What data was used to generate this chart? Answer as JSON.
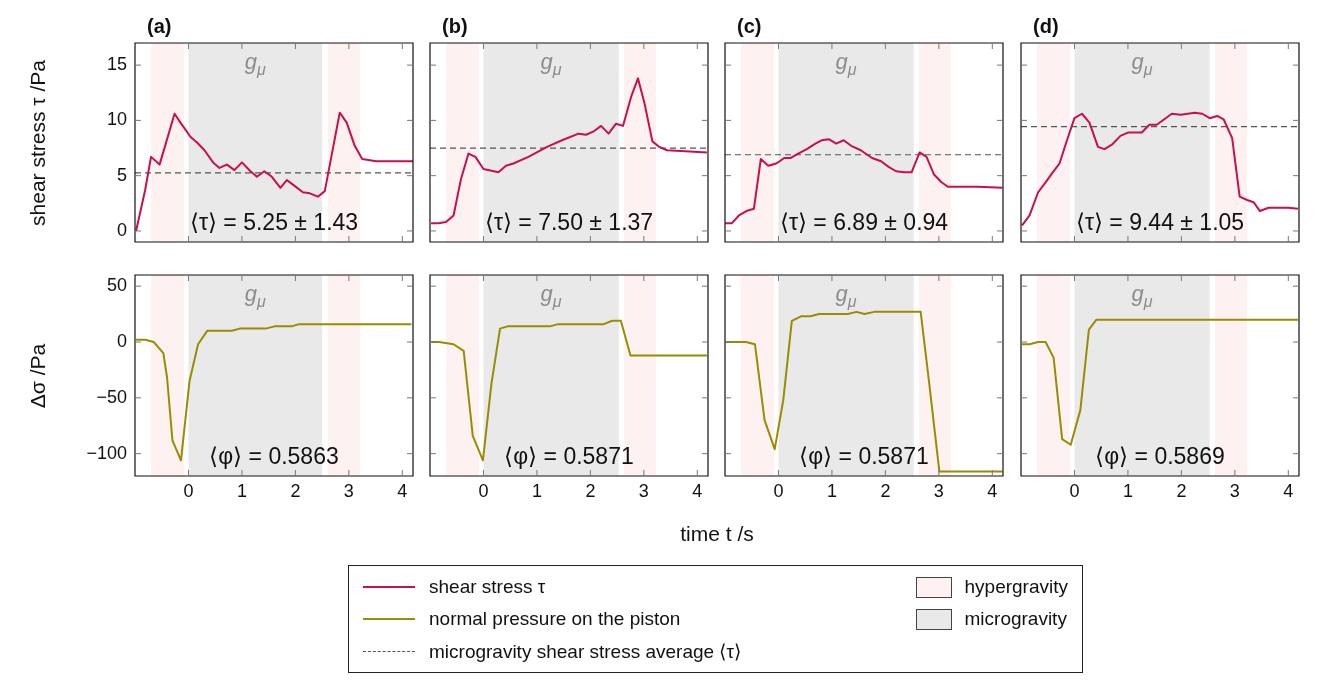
{
  "chart_data": [
    {
      "type": "line",
      "title": "(a)",
      "ylabel": "shear stress τ /Pa",
      "xlim": [
        -1,
        4.2
      ],
      "ylim": [
        -1,
        17
      ],
      "xticks": [
        0,
        1,
        2,
        3,
        4
      ],
      "yticks": [
        0,
        5,
        10,
        15
      ],
      "tick_labels": "y",
      "legend": "bottom",
      "series": [
        {
          "name": "shear stress τ",
          "color": "#c8104a",
          "x": [
            -0.98,
            -0.81,
            -0.7,
            -0.54,
            -0.26,
            -0.15,
            0.04,
            0.16,
            0.3,
            0.46,
            0.58,
            0.72,
            0.86,
            1.0,
            1.16,
            1.28,
            1.42,
            1.56,
            1.72,
            1.84,
            1.98,
            2.14,
            2.27,
            2.42,
            2.55,
            2.83,
            2.96,
            3.11,
            3.25,
            3.51,
            4.2
          ],
          "values": [
            0,
            3.7,
            6.7,
            6.0,
            10.6,
            9.8,
            8.5,
            8.0,
            7.3,
            6.2,
            5.7,
            6.0,
            5.5,
            6.2,
            5.4,
            4.9,
            5.4,
            4.9,
            3.9,
            4.6,
            4.1,
            3.5,
            3.4,
            3.1,
            3.6,
            10.7,
            9.8,
            7.7,
            6.5,
            6.3,
            6.3
          ]
        }
      ],
      "ref_lines": [
        {
          "axis": "y",
          "value": 5.25,
          "label": "microgravity shear stress average ⟨τ⟩",
          "line_style": "dashed",
          "color": "#555555"
        }
      ],
      "bands": [
        {
          "axis": "x",
          "from": -0.7,
          "to": -0.08,
          "color": "#fdf1f1",
          "label": "hypergravity"
        },
        {
          "axis": "x",
          "from": 0,
          "to": 2.5,
          "color": "#e9e9e9",
          "label": "microgravity"
        },
        {
          "axis": "x",
          "from": 2.61,
          "to": 3.21,
          "color": "#fdf1f1"
        }
      ],
      "annotations": [
        "g$_{μ}$",
        "⟨τ⟩ = 5.25 ± 1.43"
      ]
    },
    {
      "type": "line",
      "title": "(b)",
      "xlim": [
        -1,
        4.2
      ],
      "ylim": [
        -1,
        17
      ],
      "xticks": [
        0,
        1,
        2,
        3,
        4
      ],
      "yticks": [
        0,
        5,
        10,
        15
      ],
      "tick_labels": false,
      "series": [
        {
          "color": "#c8104a",
          "x": [
            -0.98,
            -0.84,
            -0.7,
            -0.56,
            -0.42,
            -0.28,
            -0.15,
            0,
            0.28,
            0.42,
            0.56,
            0.84,
            1.19,
            1.47,
            1.78,
            1.92,
            2.06,
            2.2,
            2.34,
            2.48,
            2.61,
            2.76,
            2.89,
            3.01,
            3.16,
            3.29,
            3.43,
            3.78,
            4.18
          ],
          "values": [
            0.7,
            0.7,
            0.8,
            1.4,
            4.7,
            7.0,
            6.7,
            5.6,
            5.3,
            5.9,
            6.1,
            6.7,
            7.6,
            8.2,
            8.8,
            8.7,
            9.0,
            9.5,
            8.8,
            9.7,
            9.5,
            12.1,
            13.8,
            11.6,
            8.1,
            7.6,
            7.3,
            7.2,
            7.1
          ]
        }
      ],
      "ref_lines": [
        {
          "axis": "y",
          "value": 7.5,
          "line_style": "dashed",
          "color": "#555555"
        }
      ],
      "bands": [
        {
          "axis": "x",
          "from": -0.7,
          "to": -0.08,
          "color": "#fdf1f1"
        },
        {
          "axis": "x",
          "from": 0,
          "to": 2.53,
          "color": "#e9e9e9"
        },
        {
          "axis": "x",
          "from": 2.63,
          "to": 3.23,
          "color": "#fdf1f1"
        }
      ],
      "annotations": [
        "g$_{μ}$",
        "⟨τ⟩ = 7.50 ± 1.37"
      ]
    },
    {
      "type": "line",
      "title": "(c)",
      "xlim": [
        -1,
        4.2
      ],
      "ylim": [
        -1,
        17
      ],
      "xticks": [
        0,
        1,
        2,
        3,
        4
      ],
      "yticks": [
        0,
        5,
        10,
        15
      ],
      "tick_labels": false,
      "series": [
        {
          "color": "#c8104a",
          "x": [
            -1.0,
            -0.87,
            -0.74,
            -0.6,
            -0.46,
            -0.33,
            -0.19,
            -0.04,
            0.11,
            0.23,
            0.37,
            0.53,
            0.69,
            0.81,
            0.94,
            1.08,
            1.22,
            1.36,
            1.54,
            1.75,
            1.92,
            2.06,
            2.2,
            2.35,
            2.49,
            2.64,
            2.77,
            2.91,
            3.05,
            3.17,
            3.45,
            3.73,
            4.19
          ],
          "values": [
            0.7,
            0.7,
            1.4,
            1.8,
            2.0,
            6.5,
            5.9,
            6.1,
            6.6,
            6.6,
            7.0,
            7.4,
            7.9,
            8.2,
            8.3,
            7.9,
            8.2,
            7.7,
            7.3,
            6.6,
            6.3,
            5.8,
            5.4,
            5.3,
            5.3,
            7.1,
            6.7,
            5.1,
            4.4,
            4.0,
            4.0,
            4.0,
            3.9
          ]
        }
      ],
      "ref_lines": [
        {
          "axis": "y",
          "value": 6.89,
          "line_style": "dashed",
          "color": "#555555"
        }
      ],
      "bands": [
        {
          "axis": "x",
          "from": -0.7,
          "to": -0.08,
          "color": "#fdf1f1"
        },
        {
          "axis": "x",
          "from": 0,
          "to": 2.53,
          "color": "#e9e9e9"
        },
        {
          "axis": "x",
          "from": 2.63,
          "to": 3.23,
          "color": "#fdf1f1"
        }
      ],
      "annotations": [
        "g$_{μ}$",
        "⟨τ⟩ = 6.89 ± 0.94"
      ]
    },
    {
      "type": "line",
      "title": "(d)",
      "xlim": [
        -1,
        4.2
      ],
      "ylim": [
        -1,
        17
      ],
      "xticks": [
        0,
        1,
        2,
        3,
        4
      ],
      "yticks": [
        0,
        5,
        10,
        15
      ],
      "tick_labels": false,
      "series": [
        {
          "color": "#c8104a",
          "x": [
            -0.98,
            -0.84,
            -0.68,
            -0.54,
            -0.42,
            -0.28,
            -0.14,
            0,
            0.14,
            0.28,
            0.44,
            0.56,
            0.7,
            0.86,
            1.0,
            1.26,
            1.4,
            1.54,
            1.68,
            1.82,
            1.99,
            2.25,
            2.39,
            2.53,
            2.67,
            2.79,
            2.95,
            3.09,
            3.23,
            3.35,
            3.47,
            3.63,
            3.86,
            4.0,
            4.18
          ],
          "values": [
            0.5,
            1.4,
            3.5,
            4.4,
            5.2,
            6.1,
            8.2,
            10.2,
            10.6,
            9.8,
            7.6,
            7.4,
            7.8,
            8.6,
            8.9,
            8.9,
            9.6,
            9.6,
            10.1,
            10.6,
            10.5,
            10.7,
            10.6,
            10.2,
            10.4,
            10.1,
            8.4,
            3.1,
            2.8,
            2.6,
            1.8,
            2.1,
            2.1,
            2.1,
            2.0
          ]
        }
      ],
      "ref_lines": [
        {
          "axis": "y",
          "value": 9.44,
          "line_style": "dashed",
          "color": "#555555"
        }
      ],
      "bands": [
        {
          "axis": "x",
          "from": -0.7,
          "to": -0.08,
          "color": "#fdf1f1"
        },
        {
          "axis": "x",
          "from": 0,
          "to": 2.53,
          "color": "#e9e9e9"
        },
        {
          "axis": "x",
          "from": 2.63,
          "to": 3.23,
          "color": "#fdf1f1"
        }
      ],
      "annotations": [
        "g$_{μ}$",
        "⟨τ⟩ = 9.44 ± 1.05"
      ]
    },
    {
      "type": "line",
      "ylabel": "Δσ /Pa",
      "xlim": [
        -1,
        4.2
      ],
      "ylim": [
        -120,
        60
      ],
      "xticks": [
        0,
        1,
        2,
        3,
        4
      ],
      "yticks": [
        -100,
        -50,
        0,
        50
      ],
      "legend": "bottom",
      "series": [
        {
          "name": "normal pressure on the piston",
          "color": "#9a8c00",
          "x": [
            -0.98,
            -0.81,
            -0.65,
            -0.47,
            -0.4,
            -0.3,
            -0.14,
            0.02,
            0.18,
            0.35,
            0.81,
            0.96,
            1.44,
            1.61,
            1.93,
            2.07,
            4.17
          ],
          "values": [
            2,
            2,
            0,
            -10,
            -32,
            -88,
            -106,
            -35,
            -2,
            10,
            10,
            12,
            12,
            14,
            14,
            16,
            16
          ]
        }
      ],
      "bands": [
        {
          "axis": "x",
          "from": -0.7,
          "to": -0.08,
          "color": "#fdf1f1"
        },
        {
          "axis": "x",
          "from": 0,
          "to": 2.5,
          "color": "#e9e9e9"
        },
        {
          "axis": "x",
          "from": 2.61,
          "to": 3.21,
          "color": "#fdf1f1"
        }
      ],
      "annotations": [
        "g$_{μ}$",
        "⟨φ⟩ = 0.5863"
      ]
    },
    {
      "type": "line",
      "xlabel": "time t /s",
      "xlim": [
        -1,
        4.2
      ],
      "ylim": [
        -120,
        60
      ],
      "xticks": [
        0,
        1,
        2,
        3,
        4
      ],
      "yticks": [
        -100,
        -50,
        0,
        50
      ],
      "tick_labels": "x",
      "series": [
        {
          "color": "#9a8c00",
          "x": [
            -0.98,
            -0.83,
            -0.56,
            -0.37,
            -0.2,
            -0.01,
            0.15,
            0.31,
            0.45,
            1.24,
            1.4,
            2.25,
            2.41,
            2.57,
            2.75,
            4.18
          ],
          "values": [
            0,
            0,
            -2,
            -8,
            -84,
            -106,
            -37,
            12,
            14,
            14,
            16,
            16,
            19,
            19,
            -12,
            -12
          ]
        }
      ],
      "bands": [
        {
          "axis": "x",
          "from": -0.7,
          "to": -0.08,
          "color": "#fdf1f1"
        },
        {
          "axis": "x",
          "from": 0,
          "to": 2.53,
          "color": "#e9e9e9"
        },
        {
          "axis": "x",
          "from": 2.63,
          "to": 3.23,
          "color": "#fdf1f1"
        }
      ],
      "annotations": [
        "g$_{μ}$",
        "⟨φ⟩ = 0.5871"
      ]
    },
    {
      "type": "line",
      "xlim": [
        -1,
        4.2
      ],
      "ylim": [
        -120,
        60
      ],
      "xticks": [
        0,
        1,
        2,
        3,
        4
      ],
      "yticks": [
        -100,
        -50,
        0,
        50
      ],
      "tick_labels": "x",
      "series": [
        {
          "color": "#9a8c00",
          "x": [
            -1.0,
            -0.61,
            -0.44,
            -0.26,
            -0.07,
            0.09,
            0.25,
            0.42,
            0.6,
            0.76,
            1.3,
            1.46,
            1.61,
            1.79,
            2.66,
            2.82,
            3.01,
            4.19
          ],
          "values": [
            0,
            0,
            -2,
            -70,
            -96,
            -52,
            19,
            23,
            23,
            25,
            25,
            27,
            25,
            27,
            27,
            -37,
            -116,
            -116
          ]
        }
      ],
      "bands": [
        {
          "axis": "x",
          "from": -0.7,
          "to": -0.08,
          "color": "#fdf1f1"
        },
        {
          "axis": "x",
          "from": 0,
          "to": 2.53,
          "color": "#e9e9e9"
        },
        {
          "axis": "x",
          "from": 2.63,
          "to": 3.23,
          "color": "#fdf1f1"
        }
      ],
      "annotations": [
        "g$_{μ}$",
        "⟨φ⟩ = 0.5871"
      ]
    },
    {
      "type": "line",
      "xlim": [
        -1,
        4.2
      ],
      "ylim": [
        -120,
        60
      ],
      "xticks": [
        0,
        1,
        2,
        3,
        4
      ],
      "yticks": [
        -100,
        -50,
        0,
        50
      ],
      "tick_labels": "x",
      "series": [
        {
          "color": "#9a8c00",
          "x": [
            -0.98,
            -0.84,
            -0.68,
            -0.54,
            -0.39,
            -0.23,
            -0.07,
            0.11,
            0.27,
            0.41,
            4.18
          ],
          "values": [
            -2,
            -2,
            0,
            0,
            -14,
            -87,
            -92,
            -61,
            11,
            20,
            20
          ]
        }
      ],
      "bands": [
        {
          "axis": "x",
          "from": -0.7,
          "to": -0.08,
          "color": "#fdf1f1"
        },
        {
          "axis": "x",
          "from": 0,
          "to": 2.53,
          "color": "#e9e9e9"
        },
        {
          "axis": "x",
          "from": 2.63,
          "to": 3.23,
          "color": "#fdf1f1"
        }
      ],
      "annotations": [
        "g$_{μ}$",
        "⟨φ⟩ = 0.5869"
      ]
    }
  ]
}
